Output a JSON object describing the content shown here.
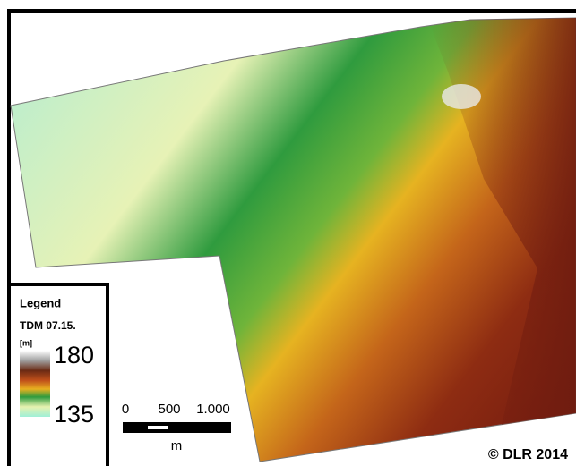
{
  "legend": {
    "title": "Legend",
    "subtitle": "TDM 07.15.",
    "unit": "[m]",
    "max": "180",
    "min": "135"
  },
  "scale_bar": {
    "ticks": [
      0,
      500,
      {
        "value": 1000,
        "label": "1.000"
      }
    ],
    "unit": "m"
  },
  "copyright": "© DLR 2014"
}
